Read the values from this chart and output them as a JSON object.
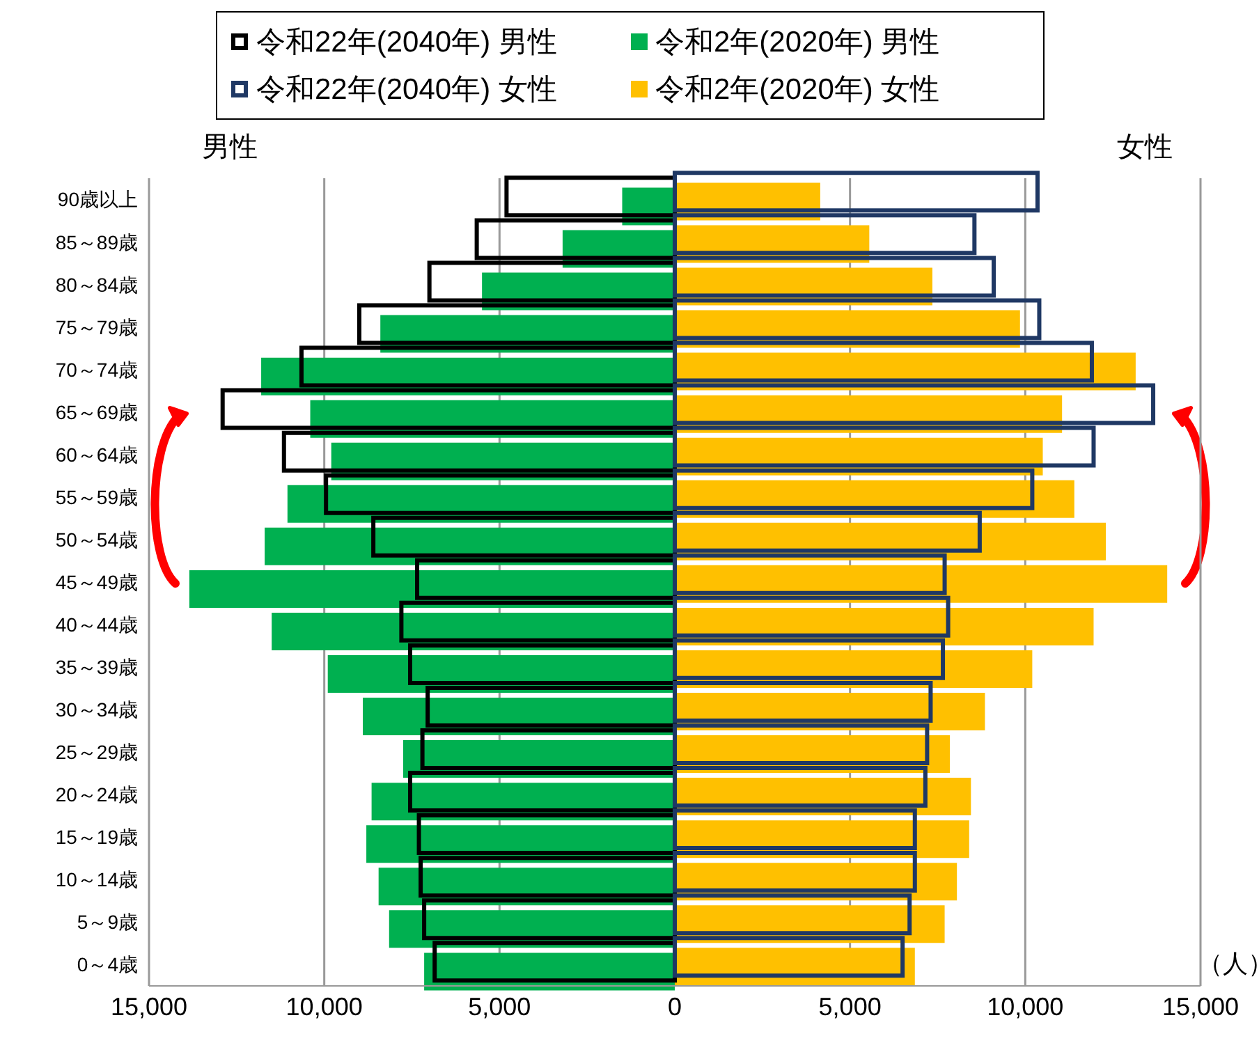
{
  "chart_data": {
    "type": "bar",
    "orientation": "horizontal",
    "categories": [
      "90歳以上",
      "85～89歳",
      "80～84歳",
      "75～79歳",
      "70～74歳",
      "65～69歳",
      "60～64歳",
      "55～59歳",
      "50～54歳",
      "45～49歳",
      "40～44歳",
      "35～39歳",
      "30～34歳",
      "25～29歳",
      "20～24歳",
      "15～19歳",
      "10～14歳",
      "5～9歳",
      "0～4歳"
    ],
    "series": [
      {
        "name": "令和22年(2040年) 男性",
        "color": "#000000",
        "values": [
          -4800,
          -5650,
          -7000,
          -9000,
          -10650,
          -12900,
          -11150,
          -9950,
          -8600,
          -7350,
          -7800,
          -7550,
          -7050,
          -7200,
          -7550,
          -7300,
          -7250,
          -7150,
          -6850
        ]
      },
      {
        "name": "令和2年(2020年) 男性",
        "color": "#00b050",
        "values": [
          -1500,
          -3200,
          -5500,
          -8400,
          -11800,
          -10400,
          -9800,
          -11050,
          -11700,
          -13850,
          -11500,
          -9900,
          -8900,
          -7750,
          -8650,
          -8800,
          -8450,
          -8150,
          -7150
        ]
      },
      {
        "name": "令和22年(2040年) 女性",
        "color": "#1f3864",
        "values": [
          10350,
          8550,
          9100,
          10400,
          11900,
          13650,
          11950,
          10200,
          8700,
          7700,
          7800,
          7650,
          7300,
          7200,
          7150,
          6850,
          6850,
          6700,
          6500
        ]
      },
      {
        "name": "令和2年(2020年) 女性",
        "color": "#ffc000",
        "values": [
          4150,
          5550,
          7350,
          9850,
          13150,
          11050,
          10500,
          11400,
          12300,
          14050,
          11950,
          10200,
          8850,
          7850,
          8450,
          8400,
          8050,
          7700,
          6850
        ]
      }
    ],
    "xlim": [
      -15000,
      15000
    ],
    "xticks": [
      {
        "value": -15000,
        "label": "15,000"
      },
      {
        "value": -10000,
        "label": "10,000"
      },
      {
        "value": -5000,
        "label": "5,000"
      },
      0,
      {
        "value": 5000,
        "label": "5,000"
      },
      {
        "value": 10000,
        "label": "10,000"
      },
      {
        "value": 15000,
        "label": "15,000"
      }
    ],
    "xlabel": "（人）",
    "annotations": [
      "男性",
      "女性"
    ],
    "grid": "x",
    "legend": "top"
  }
}
